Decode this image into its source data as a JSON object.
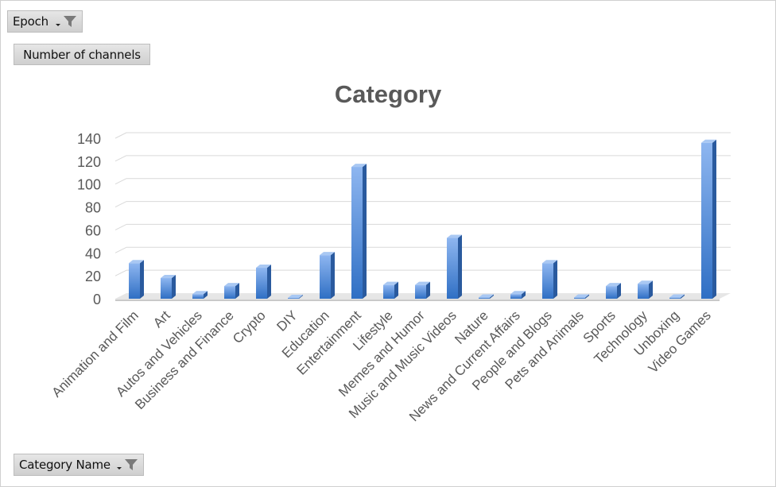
{
  "filters": {
    "epoch_label": "Epoch",
    "values_label": "Number of channels",
    "category_label": "Category Name"
  },
  "icons": {
    "filter": "funnel-filter-icon",
    "dropdown": "dropdown-arrow-icon"
  },
  "colors": {
    "bar_front_top": "#8eb6f0",
    "bar_front_bottom": "#2f6fc4",
    "bar_side": "#2a5a9e",
    "bar_top": "#a9c8f3",
    "axis_text": "#595959"
  },
  "chart_data": {
    "type": "bar",
    "title": "Category",
    "xlabel": "",
    "ylabel": "",
    "ylim": [
      0,
      140
    ],
    "yticks": [
      0,
      20,
      40,
      60,
      80,
      100,
      120,
      140
    ],
    "grid": true,
    "legend": "none",
    "categories": [
      "Animation and Film",
      "Art",
      "Autos and Vehicles",
      "Business and Finance",
      "Crypto",
      "DIY",
      "Education",
      "Entertainment",
      "Lifestyle",
      "Memes and Humor",
      "Music and Music Videos",
      "Nature",
      "News and Current Affairs",
      "People and Blogs",
      "Pets and Animals",
      "Sports",
      "Technology",
      "Unboxing",
      "Video Games"
    ],
    "values": [
      31,
      18,
      4,
      11,
      27,
      0,
      38,
      115,
      12,
      12,
      53,
      1,
      4,
      31,
      1,
      11,
      13,
      1,
      136
    ]
  }
}
